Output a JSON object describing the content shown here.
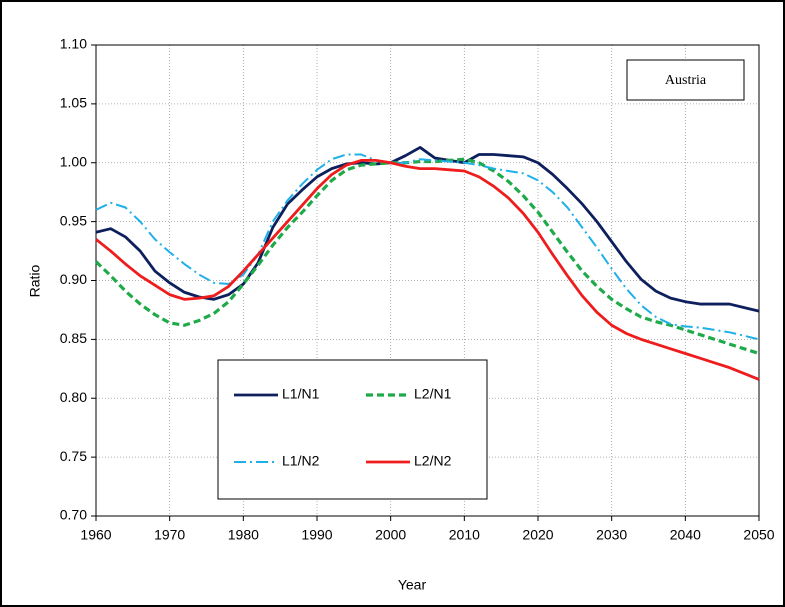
{
  "chart_data": {
    "type": "line",
    "annotation": "Austria",
    "xlabel": "Year",
    "ylabel": "Ratio",
    "x": [
      1960,
      1962,
      1964,
      1966,
      1968,
      1970,
      1972,
      1974,
      1976,
      1978,
      1980,
      1982,
      1984,
      1986,
      1988,
      1990,
      1992,
      1994,
      1996,
      1998,
      2000,
      2002,
      2004,
      2006,
      2008,
      2010,
      2012,
      2014,
      2016,
      2018,
      2020,
      2022,
      2024,
      2026,
      2028,
      2030,
      2032,
      2034,
      2036,
      2038,
      2040,
      2042,
      2044,
      2046,
      2048,
      2050
    ],
    "series": [
      {
        "name": "L1/N1",
        "color": "#0d1f5c",
        "dash": "solid",
        "width": 2.8,
        "values": [
          0.941,
          0.944,
          0.937,
          0.925,
          0.908,
          0.898,
          0.89,
          0.886,
          0.884,
          0.888,
          0.897,
          0.915,
          0.945,
          0.965,
          0.977,
          0.988,
          0.995,
          0.999,
          1.0,
          0.999,
          1.0,
          1.006,
          1.013,
          1.004,
          1.002,
          1.0,
          1.007,
          1.007,
          1.006,
          1.005,
          1.0,
          0.99,
          0.978,
          0.965,
          0.95,
          0.933,
          0.916,
          0.901,
          0.891,
          0.885,
          0.882,
          0.88,
          0.88,
          0.88,
          0.877,
          0.874
        ]
      },
      {
        "name": "L2/N1",
        "color": "#1faa4a",
        "dash": "dashed",
        "width": 3.2,
        "values": [
          0.916,
          0.904,
          0.891,
          0.88,
          0.871,
          0.864,
          0.862,
          0.866,
          0.872,
          0.882,
          0.897,
          0.913,
          0.93,
          0.945,
          0.958,
          0.972,
          0.985,
          0.994,
          0.998,
          0.999,
          1.0,
          1.0,
          1.001,
          1.001,
          1.002,
          1.003,
          1.0,
          0.993,
          0.984,
          0.972,
          0.958,
          0.941,
          0.924,
          0.908,
          0.895,
          0.884,
          0.876,
          0.869,
          0.865,
          0.862,
          0.858,
          0.854,
          0.85,
          0.846,
          0.842,
          0.838
        ]
      },
      {
        "name": "L1/N2",
        "color": "#1fb0e8",
        "dash": "dashdot",
        "width": 2,
        "values": [
          0.96,
          0.966,
          0.962,
          0.95,
          0.935,
          0.924,
          0.914,
          0.905,
          0.898,
          0.897,
          0.905,
          0.922,
          0.95,
          0.968,
          0.982,
          0.994,
          1.003,
          1.007,
          1.007,
          1.002,
          1.0,
          1.0,
          1.003,
          1.002,
          1.001,
          1.0,
          0.998,
          0.995,
          0.993,
          0.991,
          0.985,
          0.975,
          0.962,
          0.945,
          0.928,
          0.91,
          0.893,
          0.879,
          0.869,
          0.863,
          0.861,
          0.86,
          0.858,
          0.856,
          0.853,
          0.85
        ]
      },
      {
        "name": "L2/N2",
        "color": "#ee1c1c",
        "dash": "solid",
        "width": 2.8,
        "values": [
          0.935,
          0.925,
          0.914,
          0.904,
          0.896,
          0.888,
          0.884,
          0.885,
          0.887,
          0.895,
          0.908,
          0.922,
          0.936,
          0.95,
          0.964,
          0.978,
          0.99,
          0.998,
          1.002,
          1.002,
          1.0,
          0.997,
          0.995,
          0.995,
          0.994,
          0.993,
          0.988,
          0.98,
          0.97,
          0.957,
          0.941,
          0.922,
          0.904,
          0.887,
          0.873,
          0.862,
          0.855,
          0.85,
          0.846,
          0.842,
          0.838,
          0.834,
          0.83,
          0.826,
          0.821,
          0.816
        ]
      }
    ],
    "xlim": [
      1960,
      2050
    ],
    "xticks": [
      1960,
      1970,
      1980,
      1990,
      2000,
      2010,
      2020,
      2030,
      2040,
      2050
    ],
    "ylim": [
      0.7,
      1.1
    ],
    "yticks": [
      {
        "value": 0.7,
        "label": "0.70"
      },
      {
        "value": 0.75,
        "label": "0.75"
      },
      {
        "value": 0.8,
        "label": "0.80"
      },
      {
        "value": 0.85,
        "label": "0.85"
      },
      {
        "value": 0.9,
        "label": "0.90"
      },
      {
        "value": 0.95,
        "label": "0.95"
      },
      {
        "value": 1.0,
        "label": "1.00"
      },
      {
        "value": 1.05,
        "label": "1.05"
      },
      {
        "value": 1.1,
        "label": "1.10"
      }
    ],
    "grid": true
  }
}
